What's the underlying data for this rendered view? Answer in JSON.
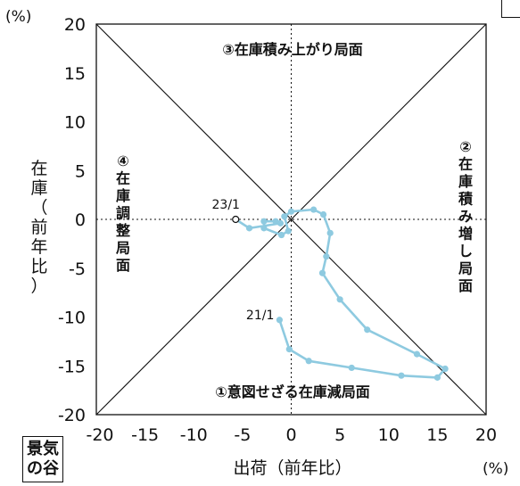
{
  "chart_data": {
    "type": "scatter",
    "title": "",
    "xlabel": "出荷（前年比）",
    "ylabel": "在庫（前年比）",
    "x_unit": "(%)",
    "y_unit": "(%)",
    "xlim": [
      -20,
      20
    ],
    "ylim": [
      -20,
      20
    ],
    "x_ticks": [
      "-20",
      "-15",
      "-10",
      "-5",
      "0",
      "5",
      "10",
      "15",
      "20"
    ],
    "y_ticks": [
      "20",
      "15",
      "10",
      "5",
      "0",
      "-5",
      "-10",
      "-15",
      "-20"
    ],
    "grid": false,
    "diagonals": true,
    "series": [
      {
        "color": "#8ecae0",
        "start_label": "21/1",
        "end_label": "23/1",
        "points": [
          [
            -1.2,
            -10.3
          ],
          [
            -0.2,
            -13.3
          ],
          [
            1.8,
            -14.5
          ],
          [
            6.2,
            -15.2
          ],
          [
            11.3,
            -16.0
          ],
          [
            15.0,
            -16.2
          ],
          [
            15.8,
            -15.3
          ],
          [
            12.9,
            -13.8
          ],
          [
            7.8,
            -11.3
          ],
          [
            5.0,
            -8.2
          ],
          [
            3.2,
            -5.5
          ],
          [
            3.6,
            -3.8
          ],
          [
            4.0,
            -1.4
          ],
          [
            3.3,
            0.5
          ],
          [
            2.3,
            1.0
          ],
          [
            0.0,
            0.8
          ],
          [
            -0.7,
            0.3
          ],
          [
            -0.3,
            -1.2
          ],
          [
            -1.0,
            -1.6
          ],
          [
            -2.8,
            -0.9
          ],
          [
            -2.8,
            -0.2
          ],
          [
            -1.6,
            -0.2
          ],
          [
            -1.1,
            -0.4
          ],
          [
            -4.3,
            -0.9
          ],
          [
            -5.7,
            0.0
          ]
        ]
      }
    ],
    "regions": [
      "①意図せざる在庫減局面",
      "②在庫積み増し局面",
      "③在庫積み上がり局面",
      "④在庫調整局面"
    ]
  },
  "badge": {
    "line1": "景気",
    "line2": "の谷"
  }
}
